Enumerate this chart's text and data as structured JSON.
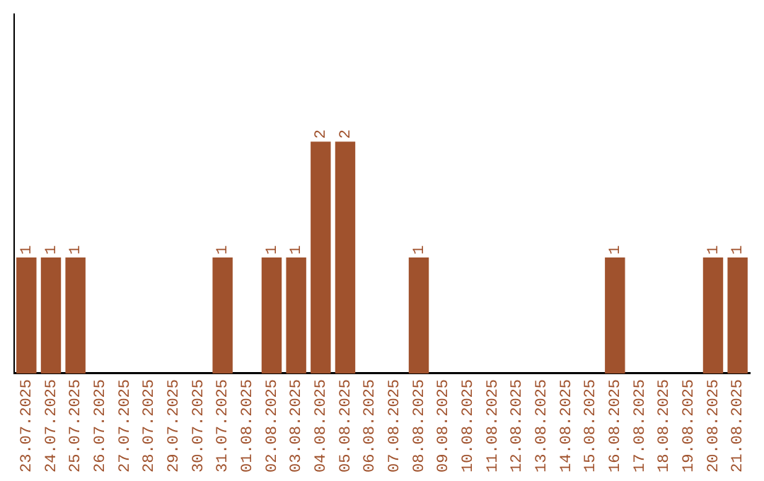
{
  "chart_data": {
    "type": "bar",
    "categories": [
      "23.07.2025",
      "24.07.2025",
      "25.07.2025",
      "26.07.2025",
      "27.07.2025",
      "28.07.2025",
      "29.07.2025",
      "30.07.2025",
      "31.07.2025",
      "01.08.2025",
      "02.08.2025",
      "03.08.2025",
      "04.08.2025",
      "05.08.2025",
      "06.08.2025",
      "07.08.2025",
      "08.08.2025",
      "09.08.2025",
      "10.08.2025",
      "11.08.2025",
      "12.08.2025",
      "13.08.2025",
      "14.08.2025",
      "15.08.2025",
      "16.08.2025",
      "17.08.2025",
      "18.08.2025",
      "19.08.2025",
      "20.08.2025",
      "21.08.2025"
    ],
    "values": [
      1,
      1,
      1,
      0,
      0,
      0,
      0,
      0,
      1,
      0,
      1,
      1,
      2,
      2,
      0,
      0,
      1,
      0,
      0,
      0,
      0,
      0,
      0,
      0,
      1,
      0,
      0,
      0,
      1,
      1
    ],
    "value_labels": [
      "1",
      "1",
      "1",
      null,
      null,
      null,
      null,
      null,
      "1",
      null,
      "1",
      "1",
      "2",
      "2",
      null,
      null,
      "1",
      null,
      null,
      null,
      null,
      null,
      null,
      null,
      "1",
      null,
      null,
      null,
      "1",
      "1"
    ],
    "color": "#a0522d",
    "ylim": [
      0,
      3.1
    ],
    "tick_labels": "x",
    "grid": false,
    "legend": false
  }
}
